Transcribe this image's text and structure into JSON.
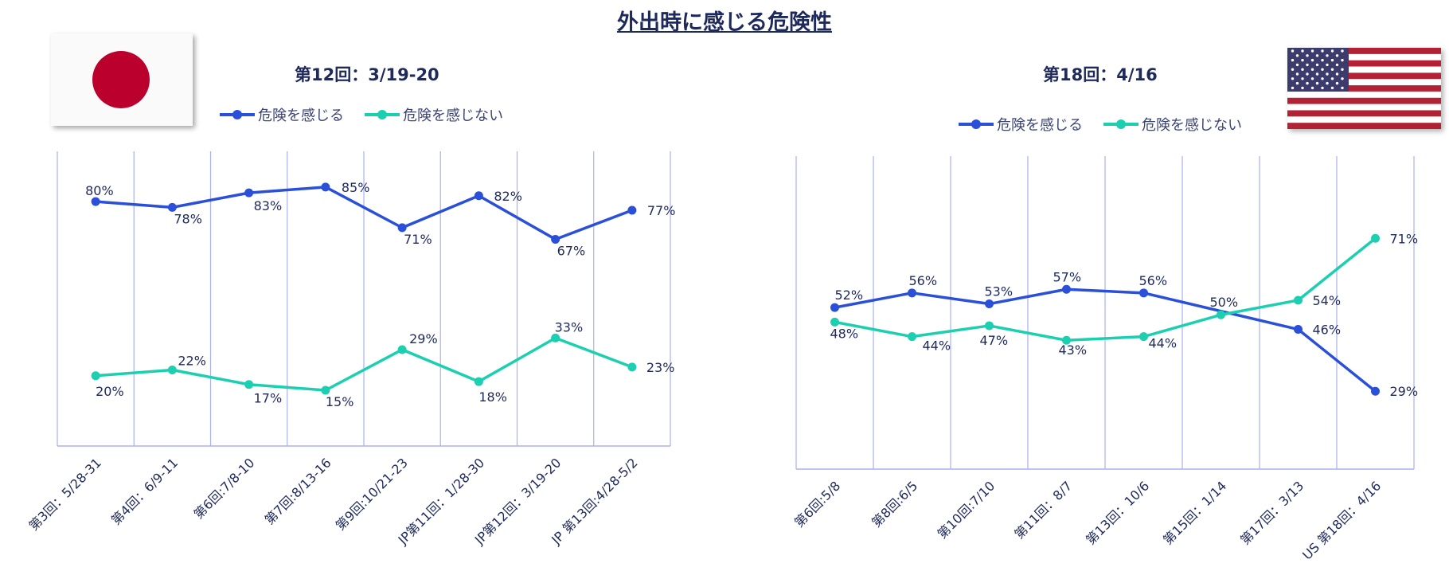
{
  "title": "外出時に感じる危険性",
  "colors": {
    "danger": "#2a4fd9",
    "no_danger": "#1ccfb0",
    "grid": "#aab0f0",
    "text": "#1f2a5c"
  },
  "flags": {
    "left": "japan-flag-icon",
    "right": "us-flag-icon"
  },
  "legend": {
    "danger": "危険を感じる",
    "no_danger": "危険を感じない"
  },
  "chart_data": [
    {
      "type": "line",
      "title": "第12回：3/19-20",
      "categories": [
        "第3回：5/28-31",
        "第4回：6/9-11",
        "第6回:7/8-10",
        "第7回:8/13-16",
        "第9回:10/21-23",
        "JP第11回：1/28-30",
        "JP第12回：3/19-20",
        "JP 第13回:4/28-5/2"
      ],
      "series": [
        {
          "name": "危険を感じる",
          "values": [
            80,
            78,
            83,
            85,
            71,
            82,
            67,
            77
          ],
          "labels": [
            "80%",
            "78%",
            "83%",
            "85%",
            "71%",
            "82%",
            "67%",
            "77%"
          ]
        },
        {
          "name": "危険を感じない",
          "values": [
            20,
            22,
            17,
            15,
            29,
            18,
            33,
            23
          ],
          "labels": [
            "20%",
            "22%",
            "17%",
            "15%",
            "29%",
            "18%",
            "33%",
            "23%"
          ]
        }
      ]
    },
    {
      "type": "line",
      "title": "第18回：4/16",
      "categories": [
        "第6回:5/8",
        "第8回:6/5",
        "第10回:7/10",
        "第11回：8/7",
        "第13回：10/6",
        "第15回：1/14",
        "第17回：3/13",
        "US 第18回：4/16"
      ],
      "series": [
        {
          "name": "危険を感じる",
          "values": [
            52,
            56,
            53,
            57,
            56,
            null,
            46,
            29
          ],
          "labels": [
            "52%",
            "56%",
            "53%",
            "57%",
            "56%",
            "",
            "46%",
            "29%"
          ]
        },
        {
          "name": "危険を感じない",
          "values": [
            48,
            44,
            47,
            43,
            44,
            50,
            54,
            71
          ],
          "labels": [
            "48%",
            "44%",
            "47%",
            "43%",
            "44%",
            "50%",
            "54%",
            "71%"
          ]
        }
      ]
    }
  ]
}
